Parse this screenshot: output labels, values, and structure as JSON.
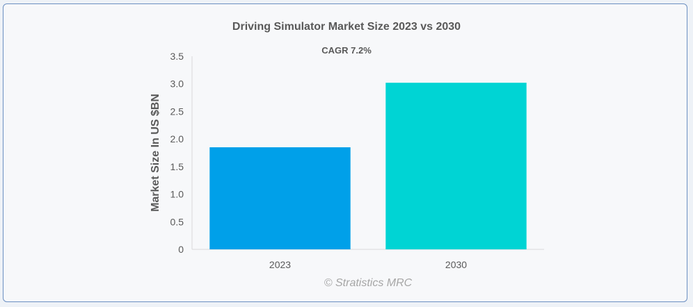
{
  "chart_data": {
    "type": "bar",
    "title": "Driving Simulator Market Size 2023 vs 2030",
    "subtitle": "CAGR 7.2%",
    "xlabel": "",
    "ylabel": "Market Size In US $BN",
    "categories": [
      "2023",
      "2030"
    ],
    "values": [
      1.85,
      3.02
    ],
    "colors": [
      "#00a0e9",
      "#00d4d4"
    ],
    "ylim": [
      0,
      3.5
    ],
    "yticks": [
      "0",
      "0.5",
      "1.0",
      "1.5",
      "2.0",
      "2.5",
      "3.0",
      "3.5"
    ],
    "grid": false,
    "legend": "none"
  },
  "watermark": "© Stratistics MRC"
}
